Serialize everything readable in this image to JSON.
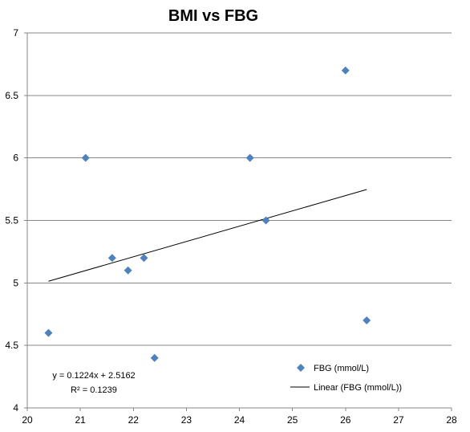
{
  "chart_data": {
    "type": "scatter",
    "title": "BMI vs FBG",
    "xlim": [
      20,
      28
    ],
    "ylim": [
      4,
      7
    ],
    "x_ticks": [
      "20",
      "21",
      "22",
      "23",
      "24",
      "25",
      "26",
      "27",
      "28"
    ],
    "y_ticks": [
      "4",
      "4.5",
      "5",
      "5.5",
      "6",
      "6.5",
      "7"
    ],
    "grid": "horizontal major gridlines",
    "legend_position": "bottom-right",
    "series": [
      {
        "name": "FBG (mmol/L)",
        "marker": "diamond",
        "color": "#4F81BD",
        "points": [
          {
            "x": 20.4,
            "y": 4.6
          },
          {
            "x": 21.1,
            "y": 6.0
          },
          {
            "x": 21.6,
            "y": 5.2
          },
          {
            "x": 21.9,
            "y": 5.1
          },
          {
            "x": 22.2,
            "y": 5.2
          },
          {
            "x": 22.4,
            "y": 4.4
          },
          {
            "x": 24.2,
            "y": 6.0
          },
          {
            "x": 24.5,
            "y": 5.5
          },
          {
            "x": 26.0,
            "y": 6.7
          },
          {
            "x": 26.4,
            "y": 4.7
          }
        ]
      }
    ],
    "trendline": {
      "name": "Linear (FBG (mmol/L))",
      "color": "#000000",
      "slope": 0.1224,
      "intercept": 2.5162,
      "x_range": [
        20.4,
        26.4
      ],
      "equation": "y = 0.1224x + 2.5162",
      "r_squared": "R² = 0.1239"
    }
  }
}
